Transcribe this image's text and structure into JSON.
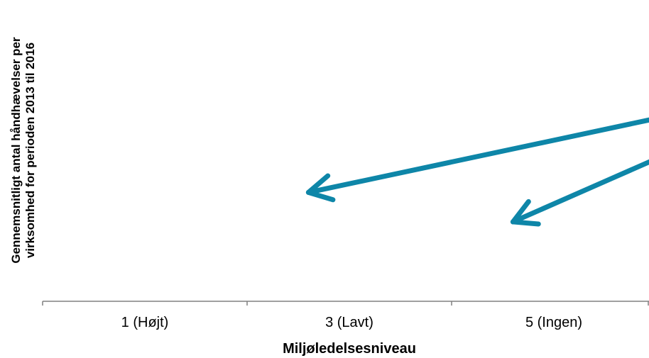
{
  "chart_data": {
    "type": "line",
    "title": "",
    "xlabel": "Miljøledelsesniveau",
    "ylabel_lines": [
      "Gennemsnitligt antal håndhævelser per",
      "virksomhed for perioden 2013 til 2016"
    ],
    "categories": [
      "1 (Højt)",
      "3 (Lavt)",
      "5 (Ingen)"
    ],
    "ylim": [
      0,
      1
    ],
    "grid": false,
    "legend": "none",
    "arrow_color": "#0E86A8",
    "arrows": [
      {
        "from": {
          "x": 3.87,
          "y": 0.75
        },
        "to": {
          "x": 1.3,
          "y": 0.37
        }
      },
      {
        "from": {
          "x": 3.87,
          "y": 0.75
        },
        "to": {
          "x": 2.3,
          "y": 0.27
        }
      }
    ]
  }
}
